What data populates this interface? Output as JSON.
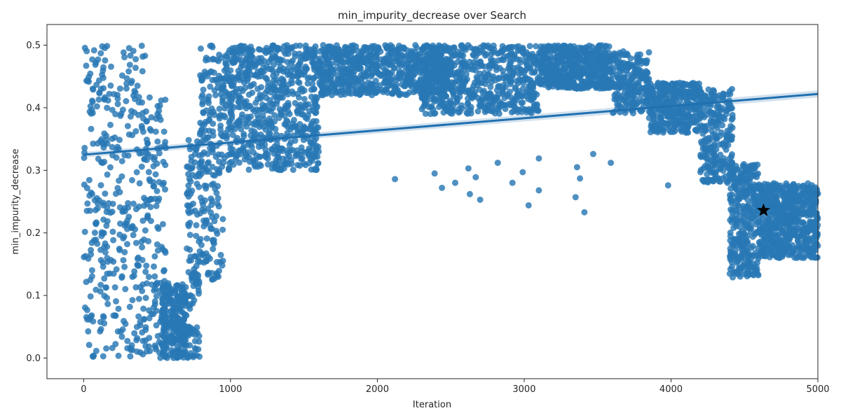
{
  "chart_data": {
    "type": "scatter",
    "title": "min_impurity_decrease over Search",
    "xlabel": "Iteration",
    "ylabel": "min_impurity_decrease",
    "xlim": [
      -250,
      5000
    ],
    "ylim": [
      -0.033,
      0.533
    ],
    "x_ticks": [
      0,
      1000,
      2000,
      3000,
      4000,
      5000
    ],
    "y_ticks": [
      0.0,
      0.1,
      0.2,
      0.3,
      0.4,
      0.5
    ],
    "x_tick_labels": [
      "0",
      "1000",
      "2000",
      "3000",
      "4000",
      "5000"
    ],
    "y_tick_labels": [
      "0.0",
      "0.1",
      "0.2",
      "0.3",
      "0.4",
      "0.5"
    ],
    "grid": false,
    "colors": {
      "points": "#2878b5",
      "regression": "#2070b0",
      "band": "#c6d9ea",
      "best": "#000000"
    },
    "series": [
      {
        "kind": "scatter",
        "clusters": [
          {
            "x": [
              0,
              200
            ],
            "y": [
              0.0,
              0.5
            ],
            "n": 170
          },
          {
            "x": [
              200,
              420
            ],
            "y": [
              0.0,
              0.5
            ],
            "n": 170
          },
          {
            "x": [
              420,
              560
            ],
            "y": [
              0.0,
              0.43
            ],
            "n": 130
          },
          {
            "x": [
              530,
              700
            ],
            "y": [
              0.0,
              0.12
            ],
            "n": 260
          },
          {
            "x": [
              700,
              790
            ],
            "y": [
              0.0,
              0.35
            ],
            "n": 120
          },
          {
            "x": [
              790,
              950
            ],
            "y": [
              0.12,
              0.5
            ],
            "n": 200
          },
          {
            "x": [
              950,
              1600
            ],
            "y": [
              0.3,
              0.5
            ],
            "n": 700
          },
          {
            "x": [
              1600,
              2500
            ],
            "y": [
              0.42,
              0.5
            ],
            "n": 700
          },
          {
            "x": [
              2300,
              3100
            ],
            "y": [
              0.39,
              0.5
            ],
            "n": 600
          },
          {
            "x": [
              3100,
              3600
            ],
            "y": [
              0.43,
              0.5
            ],
            "n": 500
          },
          {
            "x": [
              3600,
              3850
            ],
            "y": [
              0.39,
              0.49
            ],
            "n": 220
          },
          {
            "x": [
              3850,
              4200
            ],
            "y": [
              0.36,
              0.44
            ],
            "n": 350
          },
          {
            "x": [
              4200,
              4420
            ],
            "y": [
              0.28,
              0.43
            ],
            "n": 250
          },
          {
            "x": [
              4400,
              4600
            ],
            "y": [
              0.13,
              0.31
            ],
            "n": 320
          },
          {
            "x": [
              4600,
              5000
            ],
            "y": [
              0.16,
              0.28
            ],
            "n": 650
          }
        ],
        "outliers": [
          {
            "x": 2120,
            "y": 0.286
          },
          {
            "x": 2390,
            "y": 0.295
          },
          {
            "x": 2440,
            "y": 0.272
          },
          {
            "x": 2530,
            "y": 0.28
          },
          {
            "x": 2620,
            "y": 0.303
          },
          {
            "x": 2630,
            "y": 0.262
          },
          {
            "x": 2670,
            "y": 0.289
          },
          {
            "x": 2700,
            "y": 0.253
          },
          {
            "x": 2820,
            "y": 0.312
          },
          {
            "x": 2920,
            "y": 0.28
          },
          {
            "x": 2990,
            "y": 0.297
          },
          {
            "x": 3030,
            "y": 0.244
          },
          {
            "x": 3100,
            "y": 0.268
          },
          {
            "x": 3100,
            "y": 0.319
          },
          {
            "x": 3350,
            "y": 0.257
          },
          {
            "x": 3360,
            "y": 0.305
          },
          {
            "x": 3380,
            "y": 0.287
          },
          {
            "x": 3410,
            "y": 0.233
          },
          {
            "x": 3470,
            "y": 0.326
          },
          {
            "x": 3590,
            "y": 0.312
          },
          {
            "x": 3980,
            "y": 0.276
          },
          {
            "x": 4420,
            "y": 0.129
          },
          {
            "x": 4450,
            "y": 0.137
          },
          {
            "x": 4300,
            "y": 0.31
          },
          {
            "x": 4370,
            "y": 0.29
          }
        ]
      },
      {
        "kind": "regression",
        "x": [
          0,
          5000
        ],
        "y": [
          0.325,
          0.422
        ]
      },
      {
        "kind": "best",
        "x": 4630,
        "y": 0.236,
        "marker": "star"
      }
    ]
  }
}
